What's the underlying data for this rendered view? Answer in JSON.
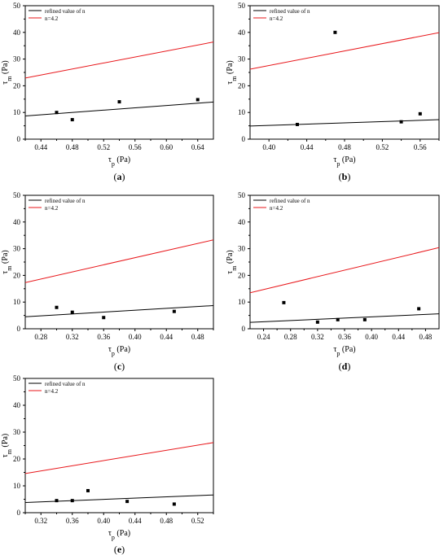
{
  "legend": {
    "black_label": "refined value of n",
    "red_label": "n=4.2"
  },
  "colors": {
    "black_line": "#000000",
    "red_line": "#e8161a",
    "frame": "#000000"
  },
  "chart_data": [
    {
      "type": "scatter",
      "panel_label": "(a)",
      "xlabel": "τp (Pa)",
      "ylabel": "τm (Pa)",
      "xlim": [
        0.42,
        0.66
      ],
      "ylim": [
        0,
        50
      ],
      "xticks": [
        "0.44",
        "0.48",
        "0.52",
        "0.56",
        "0.60",
        "0.64"
      ],
      "yticks": [
        "0",
        "10",
        "20",
        "30",
        "40",
        "50"
      ],
      "legend_position": "top-left",
      "points": [
        [
          0.46,
          10
        ],
        [
          0.48,
          7.3
        ],
        [
          0.54,
          14
        ],
        [
          0.64,
          14.8
        ]
      ],
      "lines": [
        {
          "name": "refined value of n",
          "color": "#000000",
          "x": [
            0.42,
            0.66
          ],
          "y": [
            8.7,
            13.9
          ]
        },
        {
          "name": "n=4.2",
          "color": "#e8161a",
          "x": [
            0.42,
            0.66
          ],
          "y": [
            22.9,
            36.4
          ]
        }
      ]
    },
    {
      "type": "scatter",
      "panel_label": "(b)",
      "xlabel": "τp (Pa)",
      "ylabel": "τm (Pa)",
      "xlim": [
        0.38,
        0.58
      ],
      "ylim": [
        0,
        50
      ],
      "xticks": [
        "0.40",
        "0.44",
        "0.48",
        "0.52",
        "0.56"
      ],
      "yticks": [
        "0",
        "10",
        "20",
        "30",
        "40",
        "50"
      ],
      "legend_position": "top-left",
      "points": [
        [
          0.43,
          5.5
        ],
        [
          0.47,
          40
        ],
        [
          0.54,
          6.5
        ],
        [
          0.56,
          9.5
        ]
      ],
      "lines": [
        {
          "name": "refined value of n",
          "color": "#000000",
          "x": [
            0.38,
            0.58
          ],
          "y": [
            4.9,
            7.3
          ]
        },
        {
          "name": "n=4.2",
          "color": "#e8161a",
          "x": [
            0.38,
            0.58
          ],
          "y": [
            26.2,
            39.9
          ]
        }
      ]
    },
    {
      "type": "scatter",
      "panel_label": "(c)",
      "xlabel": "τp (Pa)",
      "ylabel": "τm (Pa)",
      "xlim": [
        0.26,
        0.5
      ],
      "ylim": [
        0,
        50
      ],
      "xticks": [
        "0.28",
        "0.32",
        "0.36",
        "0.40",
        "0.44",
        "0.48"
      ],
      "yticks": [
        "0",
        "10",
        "20",
        "30",
        "40",
        "50"
      ],
      "legend_position": "top-left",
      "points": [
        [
          0.3,
          8
        ],
        [
          0.32,
          6.2
        ],
        [
          0.36,
          4.2
        ],
        [
          0.45,
          6.5
        ]
      ],
      "lines": [
        {
          "name": "refined value of n",
          "color": "#000000",
          "x": [
            0.26,
            0.5
          ],
          "y": [
            4.5,
            8.7
          ]
        },
        {
          "name": "n=4.2",
          "color": "#e8161a",
          "x": [
            0.26,
            0.5
          ],
          "y": [
            17.3,
            33.3
          ]
        }
      ]
    },
    {
      "type": "scatter",
      "panel_label": "(d)",
      "xlabel": "τp (Pa)",
      "ylabel": "τm (Pa)",
      "xlim": [
        0.22,
        0.5
      ],
      "ylim": [
        0,
        50
      ],
      "xticks": [
        "0.24",
        "0.28",
        "0.32",
        "0.36",
        "0.40",
        "0.44",
        "0.48"
      ],
      "yticks": [
        "0",
        "10",
        "20",
        "30",
        "40",
        "50"
      ],
      "legend_position": "top-left",
      "points": [
        [
          0.27,
          9.8
        ],
        [
          0.32,
          2.5
        ],
        [
          0.35,
          3.4
        ],
        [
          0.39,
          3.4
        ],
        [
          0.47,
          7.5
        ]
      ],
      "lines": [
        {
          "name": "refined value of n",
          "color": "#000000",
          "x": [
            0.22,
            0.5
          ],
          "y": [
            2.4,
            5.6
          ]
        },
        {
          "name": "n=4.2",
          "color": "#e8161a",
          "x": [
            0.22,
            0.5
          ],
          "y": [
            13.5,
            30.4
          ]
        }
      ]
    },
    {
      "type": "scatter",
      "panel_label": "(e)",
      "xlabel": "τp (Pa)",
      "ylabel": "τm (Pa)",
      "xlim": [
        0.3,
        0.54
      ],
      "ylim": [
        0,
        50
      ],
      "xticks": [
        "0.32",
        "0.36",
        "0.40",
        "0.44",
        "0.48",
        "0.52"
      ],
      "yticks": [
        "0",
        "10",
        "20",
        "30",
        "40",
        "50"
      ],
      "legend_position": "top-left",
      "points": [
        [
          0.34,
          4.5
        ],
        [
          0.36,
          4.5
        ],
        [
          0.38,
          8.2
        ],
        [
          0.43,
          4.2
        ],
        [
          0.49,
          3.2
        ]
      ],
      "lines": [
        {
          "name": "refined value of n",
          "color": "#000000",
          "x": [
            0.3,
            0.54
          ],
          "y": [
            3.8,
            6.6
          ]
        },
        {
          "name": "n=4.2",
          "color": "#e8161a",
          "x": [
            0.3,
            0.54
          ],
          "y": [
            14.6,
            26.1
          ]
        }
      ]
    }
  ]
}
